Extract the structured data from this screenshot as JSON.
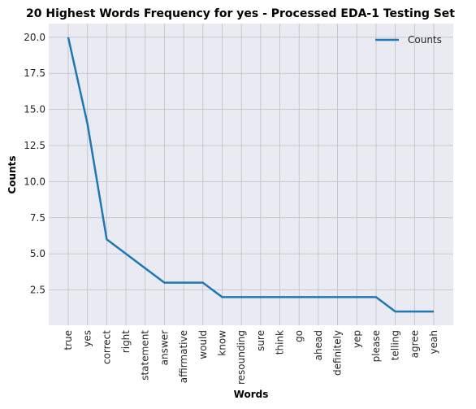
{
  "chart_data": {
    "type": "line",
    "title": "20 Highest Words Frequency for yes - Processed EDA-1 Testing Set",
    "xlabel": "Words",
    "ylabel": "Counts",
    "categories": [
      "true",
      "yes",
      "correct",
      "right",
      "statement",
      "answer",
      "affirmative",
      "would",
      "know",
      "resounding",
      "sure",
      "think",
      "go",
      "ahead",
      "definitely",
      "yep",
      "please",
      "telling",
      "agree",
      "yeah"
    ],
    "series": [
      {
        "name": "Counts",
        "values": [
          20,
          14,
          6,
          5,
          4,
          3,
          3,
          3,
          2,
          2,
          2,
          2,
          2,
          2,
          2,
          2,
          2,
          1,
          1,
          1
        ]
      }
    ],
    "y_ticks": [
      "2.5",
      "5.0",
      "7.5",
      "10.0",
      "12.5",
      "15.0",
      "17.5",
      "20.0"
    ],
    "ylim": [
      0.05,
      20.95
    ],
    "grid": true,
    "legend_position": "top-right",
    "colors": {
      "line": "#1f77b4",
      "plot_background": "#eaeaf2",
      "grid": "#c0c0c0"
    }
  }
}
